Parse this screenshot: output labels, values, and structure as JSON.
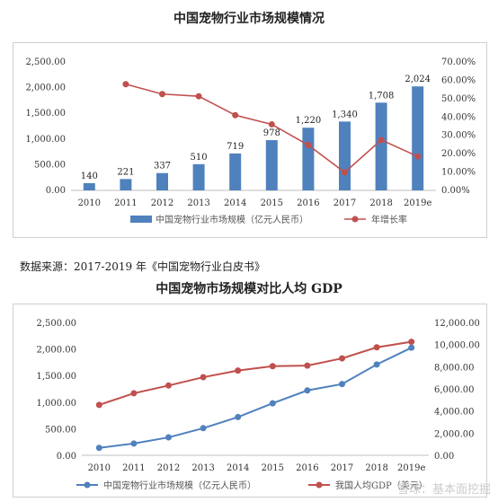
{
  "chart_data": [
    {
      "type": "bar",
      "title": "中国宠物行业市场规模情况",
      "categories": [
        "2010",
        "2011",
        "2012",
        "2013",
        "2014",
        "2015",
        "2016",
        "2017",
        "2018",
        "2019e"
      ],
      "series": [
        {
          "name": "中国宠物行业市场规模（亿元人民币）",
          "type": "bar",
          "axis": "left",
          "values": [
            140,
            221,
            337,
            510,
            719,
            978,
            1220,
            1340,
            1708,
            2024
          ],
          "labels": [
            "140",
            "221",
            "337",
            "510",
            "719",
            "978",
            "1,220",
            "1,340",
            "1,708",
            "2,024"
          ]
        },
        {
          "name": "年增长率",
          "type": "line",
          "axis": "right",
          "values": [
            null,
            57.9,
            52.5,
            51.3,
            41.0,
            36.0,
            24.7,
            9.8,
            27.5,
            18.5
          ]
        }
      ],
      "ylim": [
        0,
        2500
      ],
      "yticks": [
        "0.00",
        "500.00",
        "1,000.00",
        "1,500.00",
        "2,000.00",
        "2,500.00"
      ],
      "y2lim": [
        0,
        70
      ],
      "y2ticks": [
        "0.00%",
        "10.00%",
        "20.00%",
        "30.00%",
        "40.00%",
        "50.00%",
        "60.00%",
        "70.00%"
      ],
      "legend": "bottom",
      "colors": {
        "bar": "#4f81bd",
        "line": "#c0504d"
      }
    },
    {
      "type": "line",
      "title": "中国宠物市场规模对比人均 GDP",
      "categories": [
        "2010",
        "2011",
        "2012",
        "2013",
        "2014",
        "2015",
        "2016",
        "2017",
        "2018",
        "2019e"
      ],
      "series": [
        {
          "name": "中国宠物行业市场规模（亿元人民币）",
          "axis": "left",
          "values": [
            140,
            221,
            337,
            510,
            719,
            978,
            1220,
            1340,
            1708,
            2024
          ]
        },
        {
          "name": "我国人均GDP（美元）",
          "axis": "right",
          "values": [
            4550,
            5600,
            6300,
            7050,
            7650,
            8050,
            8100,
            8750,
            9750,
            10250
          ]
        }
      ],
      "ylim": [
        0,
        2500
      ],
      "yticks": [
        "0.00",
        "500.00",
        "1,000.00",
        "1,500.00",
        "2,000.00",
        "2,500.00"
      ],
      "y2lim": [
        0,
        12000
      ],
      "y2ticks": [
        "0.00",
        "2,000.00",
        "4,000.00",
        "6,000.00",
        "8,000.00",
        "10,000.00",
        "12,000.00"
      ],
      "legend": "bottom",
      "colors": {
        "left": "#4f81bd",
        "right": "#c0504d"
      }
    }
  ],
  "source_text": "数据来源：2017-2019 年《中国宠物行业白皮书》",
  "watermark": "雪球：基本面挖掘"
}
